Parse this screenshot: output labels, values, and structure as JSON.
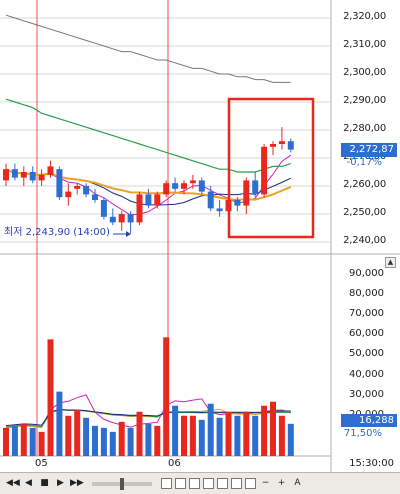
{
  "price_axis": [
    "2,320,00",
    "2,310,00",
    "2,300,00",
    "2,290,00",
    "2,280,00",
    "2,270,00",
    "2,260,00",
    "2,250,00",
    "2,240,00"
  ],
  "volume_axis": [
    "90,000",
    "80,000",
    "70,000",
    "60,000",
    "50,000",
    "40,000",
    "30,000",
    "20,000"
  ],
  "current_price": "2,272,87",
  "current_change": "-0,17%",
  "current_volume": "16,288",
  "volume_ratio": "71,50%",
  "low_annotation": "최저 2,243,90 (14:00)",
  "dates": [
    "05",
    "06"
  ],
  "time_label": "15:30:00",
  "panel_button": "▲",
  "colors": {
    "up": "#e8271f",
    "down": "#2d6fd1",
    "highlight": "#e8271f",
    "ma_orange": "#f0a020",
    "ma_green": "#2e9e4a",
    "ma_gray": "#777777",
    "ma_navy": "#1a2a7a",
    "ma_magenta": "#d020c0"
  },
  "toolbar": {
    "buttons": [
      "◀◀",
      "◀",
      "■",
      "▶",
      "▶▶"
    ],
    "right_buttons": [
      "−",
      "+",
      "A"
    ]
  },
  "chart_data": {
    "type": "candlestick",
    "price_ylim": [
      2238,
      2324
    ],
    "volume_ylim": [
      0,
      96000
    ],
    "candles": [
      {
        "o": 2262,
        "h": 2268,
        "l": 2260,
        "c": 2266,
        "v": 14000
      },
      {
        "o": 2266,
        "h": 2268,
        "l": 2262,
        "c": 2263,
        "v": 15000
      },
      {
        "o": 2263,
        "h": 2267,
        "l": 2260,
        "c": 2265,
        "v": 16000
      },
      {
        "o": 2265,
        "h": 2267,
        "l": 2261,
        "c": 2262,
        "v": 14000
      },
      {
        "o": 2262,
        "h": 2266,
        "l": 2260,
        "c": 2264,
        "v": 12000
      },
      {
        "o": 2264,
        "h": 2269,
        "l": 2263,
        "c": 2267,
        "v": 58000
      },
      {
        "o": 2266,
        "h": 2267,
        "l": 2255,
        "c": 2256,
        "v": 32000
      },
      {
        "o": 2256,
        "h": 2261,
        "l": 2253,
        "c": 2258,
        "v": 20000
      },
      {
        "o": 2259,
        "h": 2261,
        "l": 2257,
        "c": 2260,
        "v": 23000
      },
      {
        "o": 2260,
        "h": 2261,
        "l": 2256,
        "c": 2257,
        "v": 19000
      },
      {
        "o": 2257,
        "h": 2259,
        "l": 2254,
        "c": 2255,
        "v": 15000
      },
      {
        "o": 2255,
        "h": 2256,
        "l": 2248,
        "c": 2249,
        "v": 14000
      },
      {
        "o": 2249,
        "h": 2252,
        "l": 2246,
        "c": 2247,
        "v": 12000
      },
      {
        "o": 2247,
        "h": 2251,
        "l": 2244,
        "c": 2250,
        "v": 17000
      },
      {
        "o": 2250,
        "h": 2251,
        "l": 2243,
        "c": 2247,
        "v": 14000
      },
      {
        "o": 2247,
        "h": 2258,
        "l": 2246,
        "c": 2257,
        "v": 22000
      },
      {
        "o": 2257,
        "h": 2259,
        "l": 2252,
        "c": 2253,
        "v": 16000
      },
      {
        "o": 2253,
        "h": 2258,
        "l": 2252,
        "c": 2257,
        "v": 15000
      },
      {
        "o": 2257,
        "h": 2262,
        "l": 2256,
        "c": 2261,
        "v": 59000
      },
      {
        "o": 2261,
        "h": 2263,
        "l": 2258,
        "c": 2259,
        "v": 25000
      },
      {
        "o": 2259,
        "h": 2262,
        "l": 2257,
        "c": 2261,
        "v": 20000
      },
      {
        "o": 2261,
        "h": 2264,
        "l": 2259,
        "c": 2262,
        "v": 20000
      },
      {
        "o": 2262,
        "h": 2263,
        "l": 2257,
        "c": 2258,
        "v": 18000
      },
      {
        "o": 2258,
        "h": 2260,
        "l": 2251,
        "c": 2252,
        "v": 26000
      },
      {
        "o": 2252,
        "h": 2255,
        "l": 2249,
        "c": 2251,
        "v": 19000
      },
      {
        "o": 2251,
        "h": 2256,
        "l": 2250,
        "c": 2255,
        "v": 22000
      },
      {
        "o": 2255,
        "h": 2256,
        "l": 2251,
        "c": 2253,
        "v": 20000
      },
      {
        "o": 2253,
        "h": 2263,
        "l": 2250,
        "c": 2262,
        "v": 22000
      },
      {
        "o": 2262,
        "h": 2265,
        "l": 2256,
        "c": 2257,
        "v": 20000
      },
      {
        "o": 2257,
        "h": 2275,
        "l": 2256,
        "c": 2274,
        "v": 25000
      },
      {
        "o": 2274,
        "h": 2276,
        "l": 2271,
        "c": 2275,
        "v": 27000
      },
      {
        "o": 2275,
        "h": 2281,
        "l": 2273,
        "c": 2276,
        "v": 20000
      },
      {
        "o": 2276,
        "h": 2277,
        "l": 2272,
        "c": 2273,
        "v": 16000
      }
    ]
  }
}
